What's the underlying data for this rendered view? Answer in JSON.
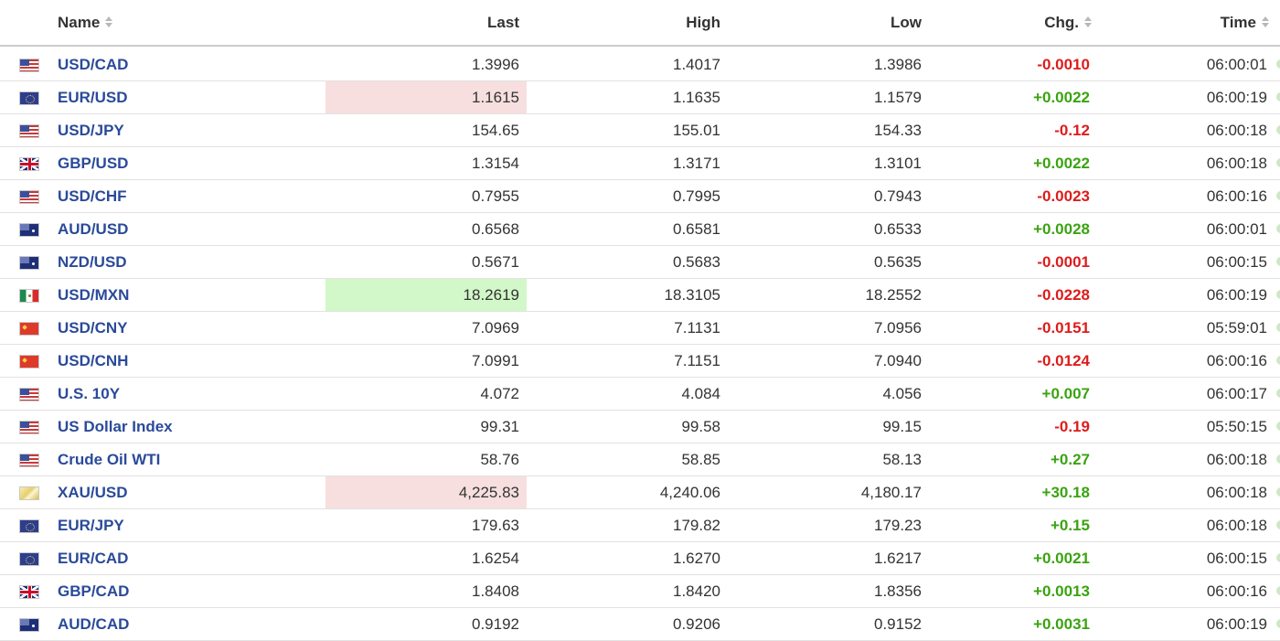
{
  "header": {
    "name": "Name",
    "last": "Last",
    "high": "High",
    "low": "Low",
    "chg": "Chg.",
    "time": "Time"
  },
  "colors": {
    "negative": "#dd1c1c",
    "positive": "#3aa310",
    "name_link": "#2a4a9a",
    "highlight_down": "#f7dfdf",
    "highlight_up": "#d2f7c8"
  },
  "rows": [
    {
      "flag": "us-flag-icon",
      "name": "USD/CAD",
      "last": "1.3996",
      "high": "1.4017",
      "low": "1.3986",
      "chg": "-0.0010",
      "dir": "neg",
      "time": "06:00:01",
      "highlight": ""
    },
    {
      "flag": "eu-flag-icon",
      "name": "EUR/USD",
      "last": "1.1615",
      "high": "1.1635",
      "low": "1.1579",
      "chg": "+0.0022",
      "dir": "pos",
      "time": "06:00:19",
      "highlight": "down"
    },
    {
      "flag": "us-flag-icon",
      "name": "USD/JPY",
      "last": "154.65",
      "high": "155.01",
      "low": "154.33",
      "chg": "-0.12",
      "dir": "neg",
      "time": "06:00:18",
      "highlight": ""
    },
    {
      "flag": "gb-flag-icon",
      "name": "GBP/USD",
      "last": "1.3154",
      "high": "1.3171",
      "low": "1.3101",
      "chg": "+0.0022",
      "dir": "pos",
      "time": "06:00:18",
      "highlight": ""
    },
    {
      "flag": "us-flag-icon",
      "name": "USD/CHF",
      "last": "0.7955",
      "high": "0.7995",
      "low": "0.7943",
      "chg": "-0.0023",
      "dir": "neg",
      "time": "06:00:16",
      "highlight": ""
    },
    {
      "flag": "au-flag-icon",
      "name": "AUD/USD",
      "last": "0.6568",
      "high": "0.6581",
      "low": "0.6533",
      "chg": "+0.0028",
      "dir": "pos",
      "time": "06:00:01",
      "highlight": ""
    },
    {
      "flag": "au-flag-icon",
      "name": "NZD/USD",
      "last": "0.5671",
      "high": "0.5683",
      "low": "0.5635",
      "chg": "-0.0001",
      "dir": "neg",
      "time": "06:00:15",
      "highlight": ""
    },
    {
      "flag": "mx-flag-icon",
      "name": "USD/MXN",
      "last": "18.2619",
      "high": "18.3105",
      "low": "18.2552",
      "chg": "-0.0228",
      "dir": "neg",
      "time": "06:00:19",
      "highlight": "up"
    },
    {
      "flag": "cn-flag-icon",
      "name": "USD/CNY",
      "last": "7.0969",
      "high": "7.1131",
      "low": "7.0956",
      "chg": "-0.0151",
      "dir": "neg",
      "time": "05:59:01",
      "highlight": ""
    },
    {
      "flag": "cn-flag-icon",
      "name": "USD/CNH",
      "last": "7.0991",
      "high": "7.1151",
      "low": "7.0940",
      "chg": "-0.0124",
      "dir": "neg",
      "time": "06:00:16",
      "highlight": ""
    },
    {
      "flag": "us-flag-icon",
      "name": "U.S. 10Y",
      "last": "4.072",
      "high": "4.084",
      "low": "4.056",
      "chg": "+0.007",
      "dir": "pos",
      "time": "06:00:17",
      "highlight": ""
    },
    {
      "flag": "us-flag-icon",
      "name": "US Dollar Index",
      "last": "99.31",
      "high": "99.58",
      "low": "99.15",
      "chg": "-0.19",
      "dir": "neg",
      "time": "05:50:15",
      "highlight": ""
    },
    {
      "flag": "us-flag-icon",
      "name": "Crude Oil WTI",
      "last": "58.76",
      "high": "58.85",
      "low": "58.13",
      "chg": "+0.27",
      "dir": "pos",
      "time": "06:00:18",
      "highlight": ""
    },
    {
      "flag": "gold-icon",
      "name": "XAU/USD",
      "last": "4,225.83",
      "high": "4,240.06",
      "low": "4,180.17",
      "chg": "+30.18",
      "dir": "pos",
      "time": "06:00:18",
      "highlight": "down"
    },
    {
      "flag": "eu-flag-icon",
      "name": "EUR/JPY",
      "last": "179.63",
      "high": "179.82",
      "low": "179.23",
      "chg": "+0.15",
      "dir": "pos",
      "time": "06:00:18",
      "highlight": ""
    },
    {
      "flag": "eu-flag-icon",
      "name": "EUR/CAD",
      "last": "1.6254",
      "high": "1.6270",
      "low": "1.6217",
      "chg": "+0.0021",
      "dir": "pos",
      "time": "06:00:15",
      "highlight": ""
    },
    {
      "flag": "gb-flag-icon",
      "name": "GBP/CAD",
      "last": "1.8408",
      "high": "1.8420",
      "low": "1.8356",
      "chg": "+0.0013",
      "dir": "pos",
      "time": "06:00:16",
      "highlight": ""
    },
    {
      "flag": "au-flag-icon",
      "name": "AUD/CAD",
      "last": "0.9192",
      "high": "0.9206",
      "low": "0.9152",
      "chg": "+0.0031",
      "dir": "pos",
      "time": "06:00:19",
      "highlight": ""
    }
  ]
}
